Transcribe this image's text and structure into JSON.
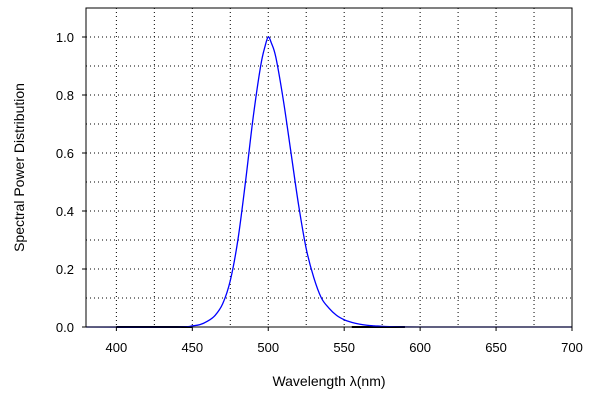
{
  "chart_data": {
    "type": "line",
    "xlabel": "Wavelength λ(nm)",
    "ylabel": "Spectral Power Distribution",
    "xlim": [
      380,
      700
    ],
    "ylim": [
      0,
      1.1
    ],
    "x_ticks": [
      400,
      450,
      500,
      550,
      600,
      650,
      700
    ],
    "y_ticks": [
      0.0,
      0.2,
      0.4,
      0.6,
      0.8,
      1.0
    ],
    "x_tick_labels": [
      "400",
      "450",
      "500",
      "550",
      "600",
      "650",
      "700"
    ],
    "y_tick_labels": [
      "0.0",
      "0.2",
      "0.4",
      "0.6",
      "0.8",
      "1.0"
    ],
    "grid": true,
    "grid_style": "dotted",
    "series": [
      {
        "color": "#0000ff",
        "x": [
          380,
          440,
          450,
          455,
          460,
          465,
          470,
          475,
          480,
          485,
          490,
          495,
          498,
          500,
          502,
          505,
          510,
          515,
          520,
          525,
          530,
          535,
          540,
          545,
          550,
          555,
          560,
          565,
          570,
          580,
          600,
          650,
          700
        ],
        "y": [
          0,
          0,
          0.004,
          0.008,
          0.02,
          0.04,
          0.08,
          0.16,
          0.3,
          0.5,
          0.72,
          0.9,
          0.97,
          1.0,
          0.98,
          0.93,
          0.78,
          0.6,
          0.42,
          0.27,
          0.17,
          0.1,
          0.065,
          0.04,
          0.025,
          0.016,
          0.01,
          0.006,
          0.004,
          0.001,
          0,
          0,
          0
        ]
      }
    ],
    "baseline_segments": [
      {
        "x": [
          400,
          450
        ],
        "y": 0,
        "color": "#000000"
      },
      {
        "x": [
          555,
          590
        ],
        "y": 0,
        "color": "#000000"
      }
    ]
  }
}
